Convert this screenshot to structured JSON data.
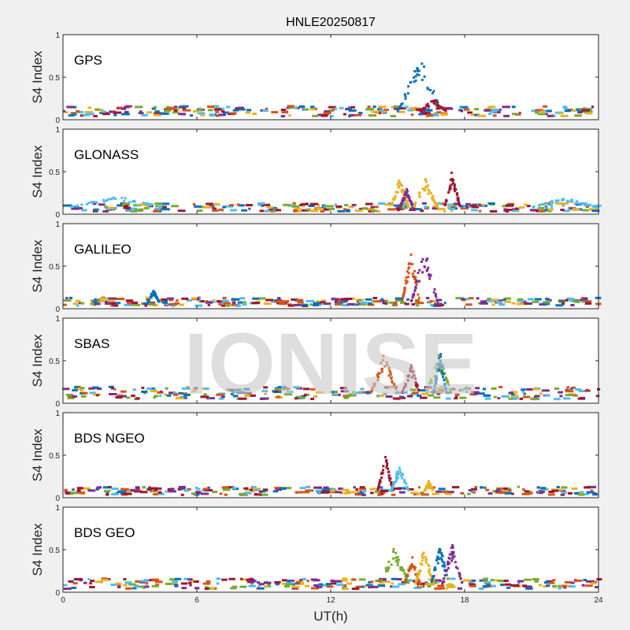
{
  "chart_data": {
    "type": "scatter",
    "title": "HNLE20250817",
    "xlabel": "UT(h)",
    "ylabel": "S4 Index",
    "xlim": [
      0,
      24
    ],
    "ylim": [
      0,
      1
    ],
    "xticks": [
      0,
      6,
      12,
      18,
      24
    ],
    "yticks": [
      0,
      0.5,
      1
    ],
    "watermark": "IONISE",
    "colors": [
      "#0072BD",
      "#D95319",
      "#EDB120",
      "#7E2F8E",
      "#77AC30",
      "#4DBEEE",
      "#A2142F"
    ],
    "panels": [
      {
        "name": "GPS",
        "baseline": 0.1,
        "events": [
          {
            "color": 0,
            "start": 15.0,
            "end": 17.0,
            "peak": 0.75
          },
          {
            "color": 6,
            "start": 16.0,
            "end": 17.2,
            "peak": 0.25
          }
        ]
      },
      {
        "name": "GLONASS",
        "baseline": 0.08,
        "events": [
          {
            "color": 2,
            "start": 14.7,
            "end": 15.5,
            "peak": 0.45
          },
          {
            "color": 3,
            "start": 15.1,
            "end": 15.7,
            "peak": 0.3
          },
          {
            "color": 2,
            "start": 15.7,
            "end": 16.8,
            "peak": 0.42
          },
          {
            "color": 6,
            "start": 17.1,
            "end": 17.8,
            "peak": 0.53
          },
          {
            "color": 5,
            "start": 0.3,
            "end": 4.5,
            "peak": 0.22
          },
          {
            "color": 5,
            "start": 21.0,
            "end": 24.0,
            "peak": 0.2
          }
        ]
      },
      {
        "name": "GALILEO",
        "baseline": 0.08,
        "events": [
          {
            "color": 1,
            "start": 15.2,
            "end": 16.0,
            "peak": 0.72
          },
          {
            "color": 3,
            "start": 15.6,
            "end": 16.8,
            "peak": 0.73
          },
          {
            "color": 0,
            "start": 3.8,
            "end": 4.3,
            "peak": 0.23
          }
        ]
      },
      {
        "name": "SBAS",
        "baseline": 0.12,
        "events": [
          {
            "color": 1,
            "start": 13.8,
            "end": 15.0,
            "peak": 0.6
          },
          {
            "color": 6,
            "start": 15.2,
            "end": 16.0,
            "peak": 0.45
          },
          {
            "color": 4,
            "start": 16.3,
            "end": 17.4,
            "peak": 0.6
          },
          {
            "color": 0,
            "start": 16.6,
            "end": 17.2,
            "peak": 0.62
          }
        ]
      },
      {
        "name": "BDS NGEO",
        "baseline": 0.08,
        "events": [
          {
            "color": 6,
            "start": 14.1,
            "end": 14.8,
            "peak": 0.52
          },
          {
            "color": 5,
            "start": 14.7,
            "end": 15.5,
            "peak": 0.4
          },
          {
            "color": 2,
            "start": 16.2,
            "end": 16.6,
            "peak": 0.2
          }
        ]
      },
      {
        "name": "BDS GEO",
        "baseline": 0.1,
        "events": [
          {
            "color": 4,
            "start": 14.2,
            "end": 15.5,
            "peak": 0.55
          },
          {
            "color": 1,
            "start": 15.3,
            "end": 16.0,
            "peak": 0.42
          },
          {
            "color": 2,
            "start": 15.8,
            "end": 16.6,
            "peak": 0.56
          },
          {
            "color": 0,
            "start": 16.5,
            "end": 17.3,
            "peak": 0.56
          },
          {
            "color": 3,
            "start": 17.0,
            "end": 17.9,
            "peak": 0.57
          }
        ]
      }
    ]
  }
}
